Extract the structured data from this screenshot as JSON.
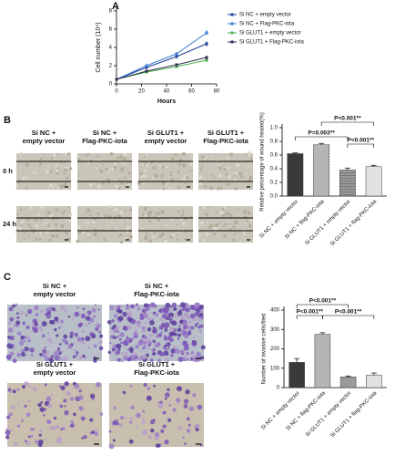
{
  "figure": {
    "panel_labels": [
      "A",
      "B",
      "C"
    ],
    "wound_headers": [
      [
        "Si NC +",
        "empty vector"
      ],
      [
        "Si NC +",
        "Flag-PKC-iota"
      ],
      [
        "Si GLUT1 +",
        "empty vector"
      ],
      [
        "Si GLUT1 +",
        "Flag-PKC-iota"
      ]
    ],
    "wound_rows": [
      "0 h",
      "24 h"
    ],
    "invasion_headers": [
      [
        "Si NC +",
        "empty vector"
      ],
      [
        "Si NC +",
        "Flag-PKC-iota"
      ],
      [
        "Si GLUT1 +",
        "empty vector"
      ],
      [
        "Si GLUT1 +",
        "Flag-PKC-iota"
      ]
    ]
  },
  "chart_data": [
    {
      "type": "line",
      "x_label": "Hours",
      "y_label": "Cell number (10⁴)",
      "x": [
        0,
        24,
        48,
        72
      ],
      "xlim": [
        0,
        80
      ],
      "ylim": [
        0,
        8
      ],
      "xticks": [
        0,
        20,
        40,
        60,
        80
      ],
      "yticks": [
        0,
        2,
        4,
        6,
        8
      ],
      "legend": "outside-right",
      "series": [
        {
          "name": "Si NC + empty vector",
          "color": "#1f3f8f",
          "values": [
            0.5,
            1.8,
            3.0,
            4.4
          ],
          "errors": [
            0.05,
            0.15,
            0.2,
            0.3
          ]
        },
        {
          "name": "Si NC + Flag-PKC-iota",
          "color": "#3a7bd5",
          "values": [
            0.5,
            2.0,
            3.3,
            5.6
          ],
          "errors": [
            0.05,
            0.15,
            0.2,
            0.3
          ]
        },
        {
          "name": "Si GLUT1 + empty vector",
          "color": "#4caf50",
          "values": [
            0.5,
            1.3,
            1.9,
            2.6
          ],
          "errors": [
            0.05,
            0.1,
            0.15,
            0.2
          ]
        },
        {
          "name": "Si GLUT1 + Flag-PKC-iota",
          "color": "#303050",
          "values": [
            0.5,
            1.4,
            2.1,
            2.9
          ],
          "errors": [
            0.05,
            0.1,
            0.15,
            0.2
          ]
        }
      ]
    },
    {
      "type": "bar",
      "y_label": "Relative percentage of wound healed(%)",
      "categories": [
        "Si NC + empty vector",
        "Si NC + flag-PKC-iota",
        "Si GLUT1 + empty vector",
        "Si GLUT1 + flag-PKC-iota"
      ],
      "values": [
        0.62,
        0.75,
        0.38,
        0.43
      ],
      "errors": [
        0.01,
        0.02,
        0.03,
        0.02
      ],
      "colors": [
        "#3a3a3a",
        "#cfcfcf",
        "#9a9a9a",
        "#e2e2e2"
      ],
      "hatch": [
        "none",
        "checker",
        "stripes",
        "none"
      ],
      "ylim": [
        0,
        1
      ],
      "yticks": [
        {
          "value": 0,
          "label": "0.0"
        },
        {
          "value": 0.2,
          "label": "0.2"
        },
        {
          "value": 0.4,
          "label": "0.4"
        },
        {
          "value": 0.6,
          "label": "0.6"
        },
        {
          "value": 0.8,
          "label": "0.8"
        },
        {
          "value": 1,
          "label": "1.0"
        }
      ],
      "annotations": [
        "P<0.001**",
        "P=0.003**",
        "P<0.001**"
      ]
    },
    {
      "type": "bar",
      "y_label": "Number of invasive cells/filed",
      "categories": [
        "Si NC + empty vector",
        "Si NC + flag-PKC-iota",
        "Si GLUT1 + empty vector",
        "Si GLUT1 + flag-PKC-iota"
      ],
      "values": [
        130,
        275,
        55,
        65
      ],
      "errors": [
        20,
        8,
        5,
        10
      ],
      "colors": [
        "#3a3a3a",
        "#cfcfcf",
        "#9a9a9a",
        "#e2e2e2"
      ],
      "hatch": [
        "none",
        "checker",
        "none",
        "none"
      ],
      "ylim": [
        0,
        400
      ],
      "yticks": [
        0,
        100,
        200,
        300,
        400
      ],
      "annotations": [
        "P<0.001**",
        "P<0.001**",
        "P<0.001**"
      ]
    }
  ]
}
